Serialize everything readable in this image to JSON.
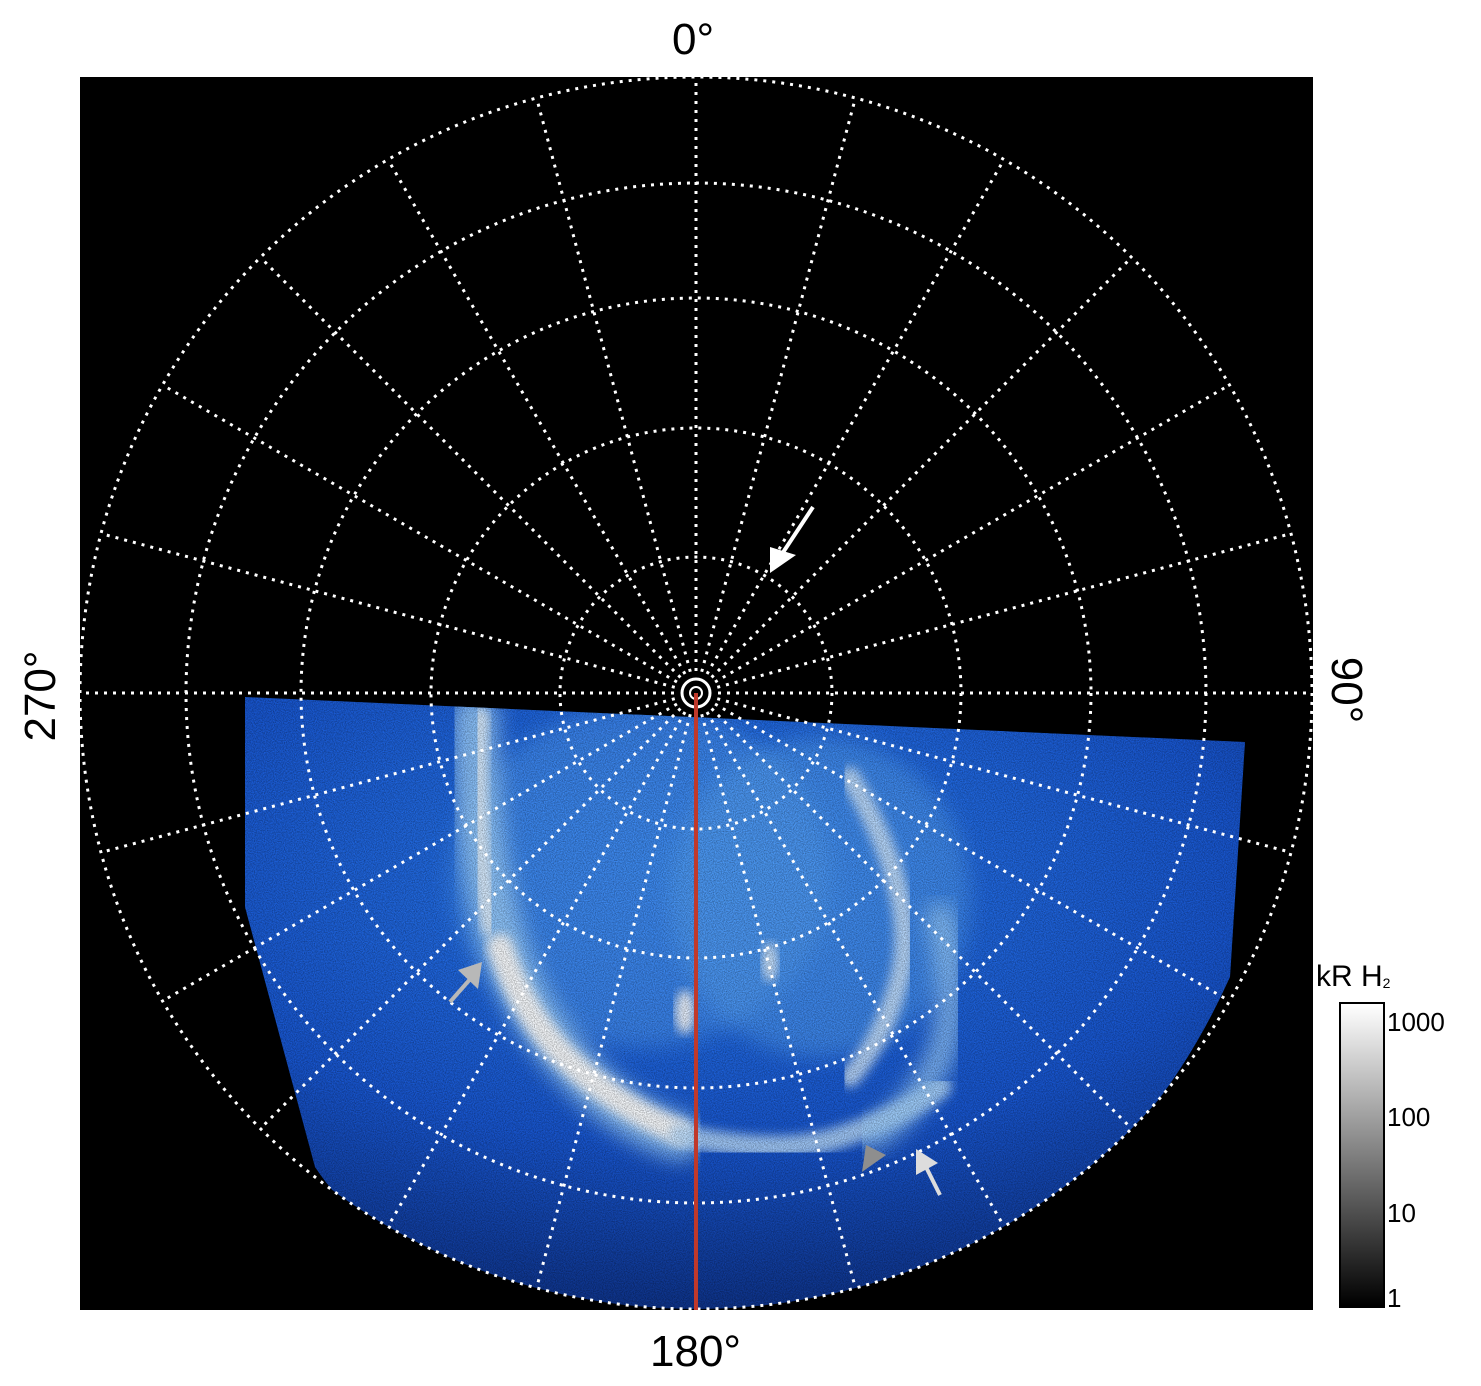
{
  "orientation_labels": {
    "top": "0°",
    "bottom": "180°",
    "left": "270°",
    "right": "90°"
  },
  "colorbar": {
    "title": "kR H",
    "title_subscript": "2",
    "ticks": [
      "1000",
      "100",
      "10",
      "1"
    ],
    "gradient_low": "#000000",
    "gradient_high": "#ffffff"
  },
  "colors": {
    "background": "#000000",
    "grid": "#ffffff",
    "aurora_dark": "#0b2a8c",
    "aurora_mid": "#1f66e0",
    "aurora_bright": "#9fd2ff",
    "aurora_core": "#ffffff",
    "meridian_line": "#c0392b",
    "arrow_white": "#ffffff",
    "arrow_gray": "#b8b8b8"
  },
  "icons": [
    "arrow-icon"
  ]
}
